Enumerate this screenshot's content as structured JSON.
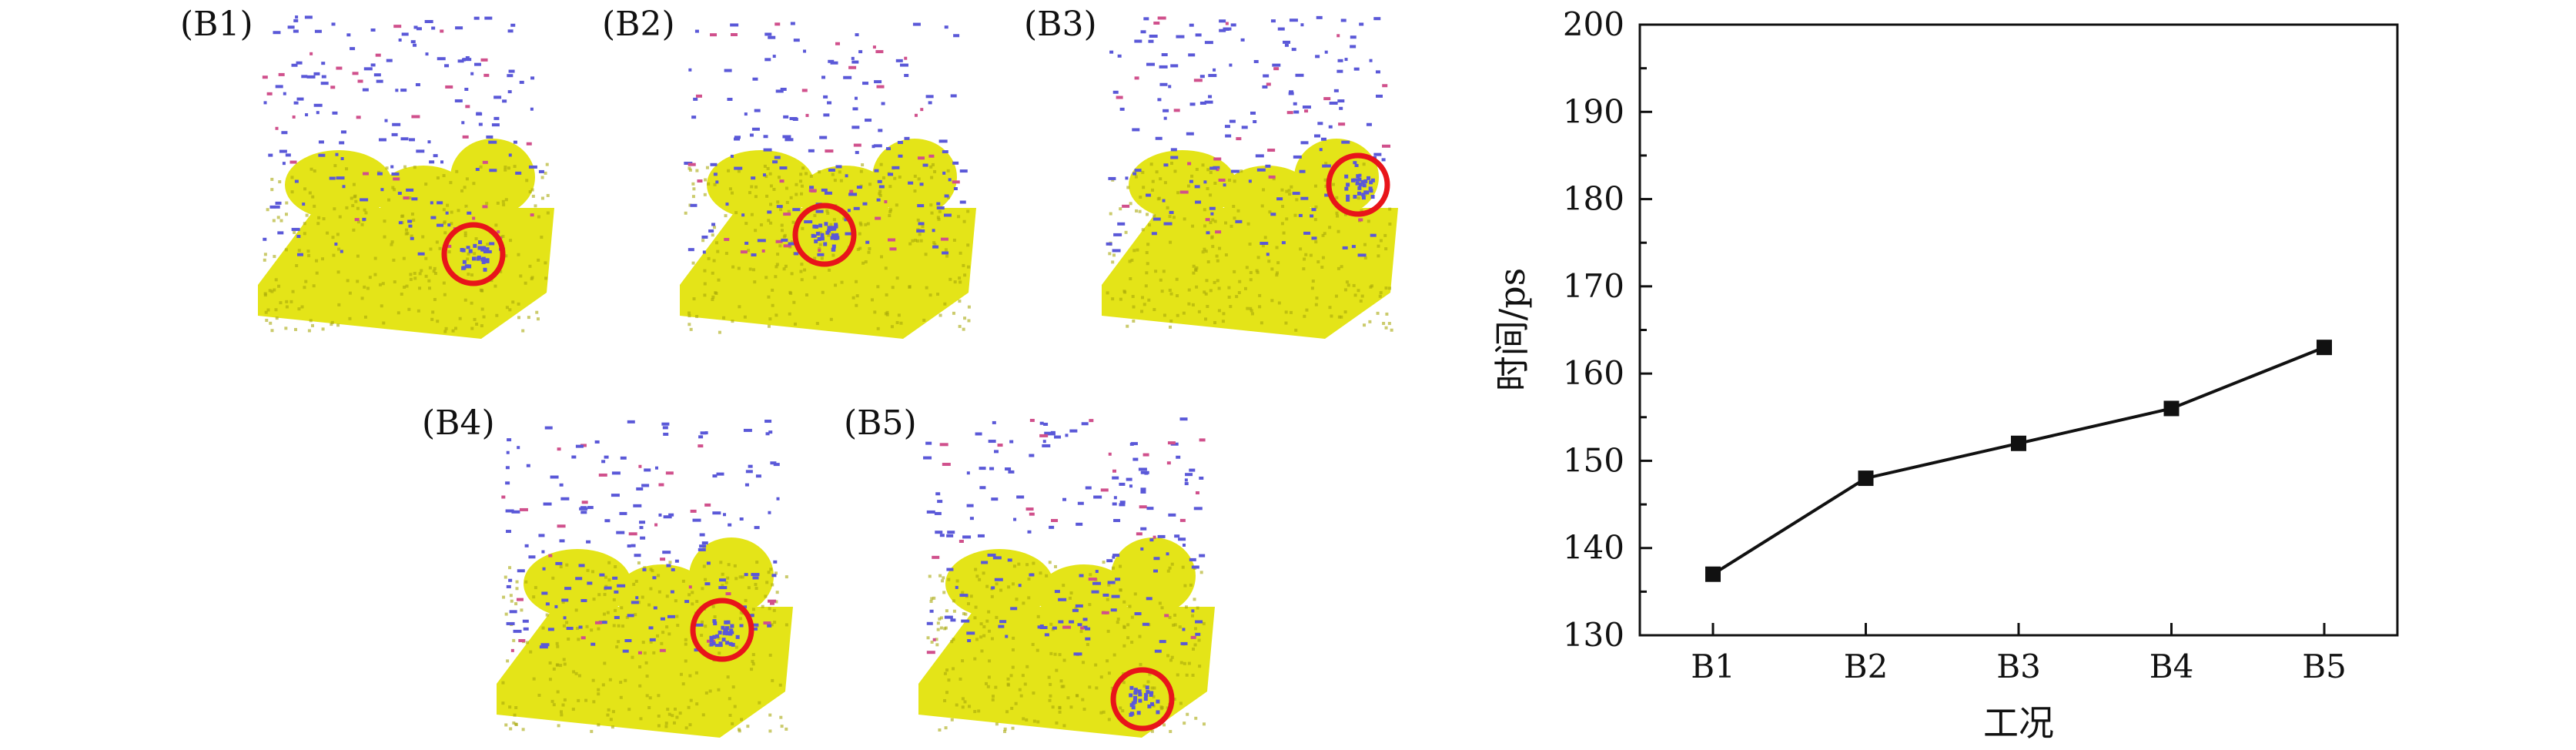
{
  "figure": {
    "panels": [
      {
        "label": "(B1)"
      },
      {
        "label": "(B2)"
      },
      {
        "label": "(B3)"
      },
      {
        "label": "(B4)"
      },
      {
        "label": "(B5)"
      }
    ],
    "colors": {
      "substrate": "#e4e418",
      "substrate_dark": "#a9a90c",
      "particles": "#5a58d8",
      "particles_alt": "#d0508c",
      "highlight_circle": "#e8141a"
    },
    "icons": [
      "molecular-dynamics-snapshot"
    ]
  },
  "chart_data": {
    "type": "line",
    "categories": [
      "B1",
      "B2",
      "B3",
      "B4",
      "B5"
    ],
    "series": [
      {
        "values": [
          137,
          148,
          152,
          156,
          163
        ],
        "marker": "square",
        "color": "#111111"
      }
    ],
    "xlabel": "工况",
    "ylabel": "时间/ps",
    "ylim": [
      130,
      200
    ],
    "yticks": [
      130,
      140,
      150,
      160,
      170,
      180,
      190,
      200
    ],
    "grid": false
  }
}
